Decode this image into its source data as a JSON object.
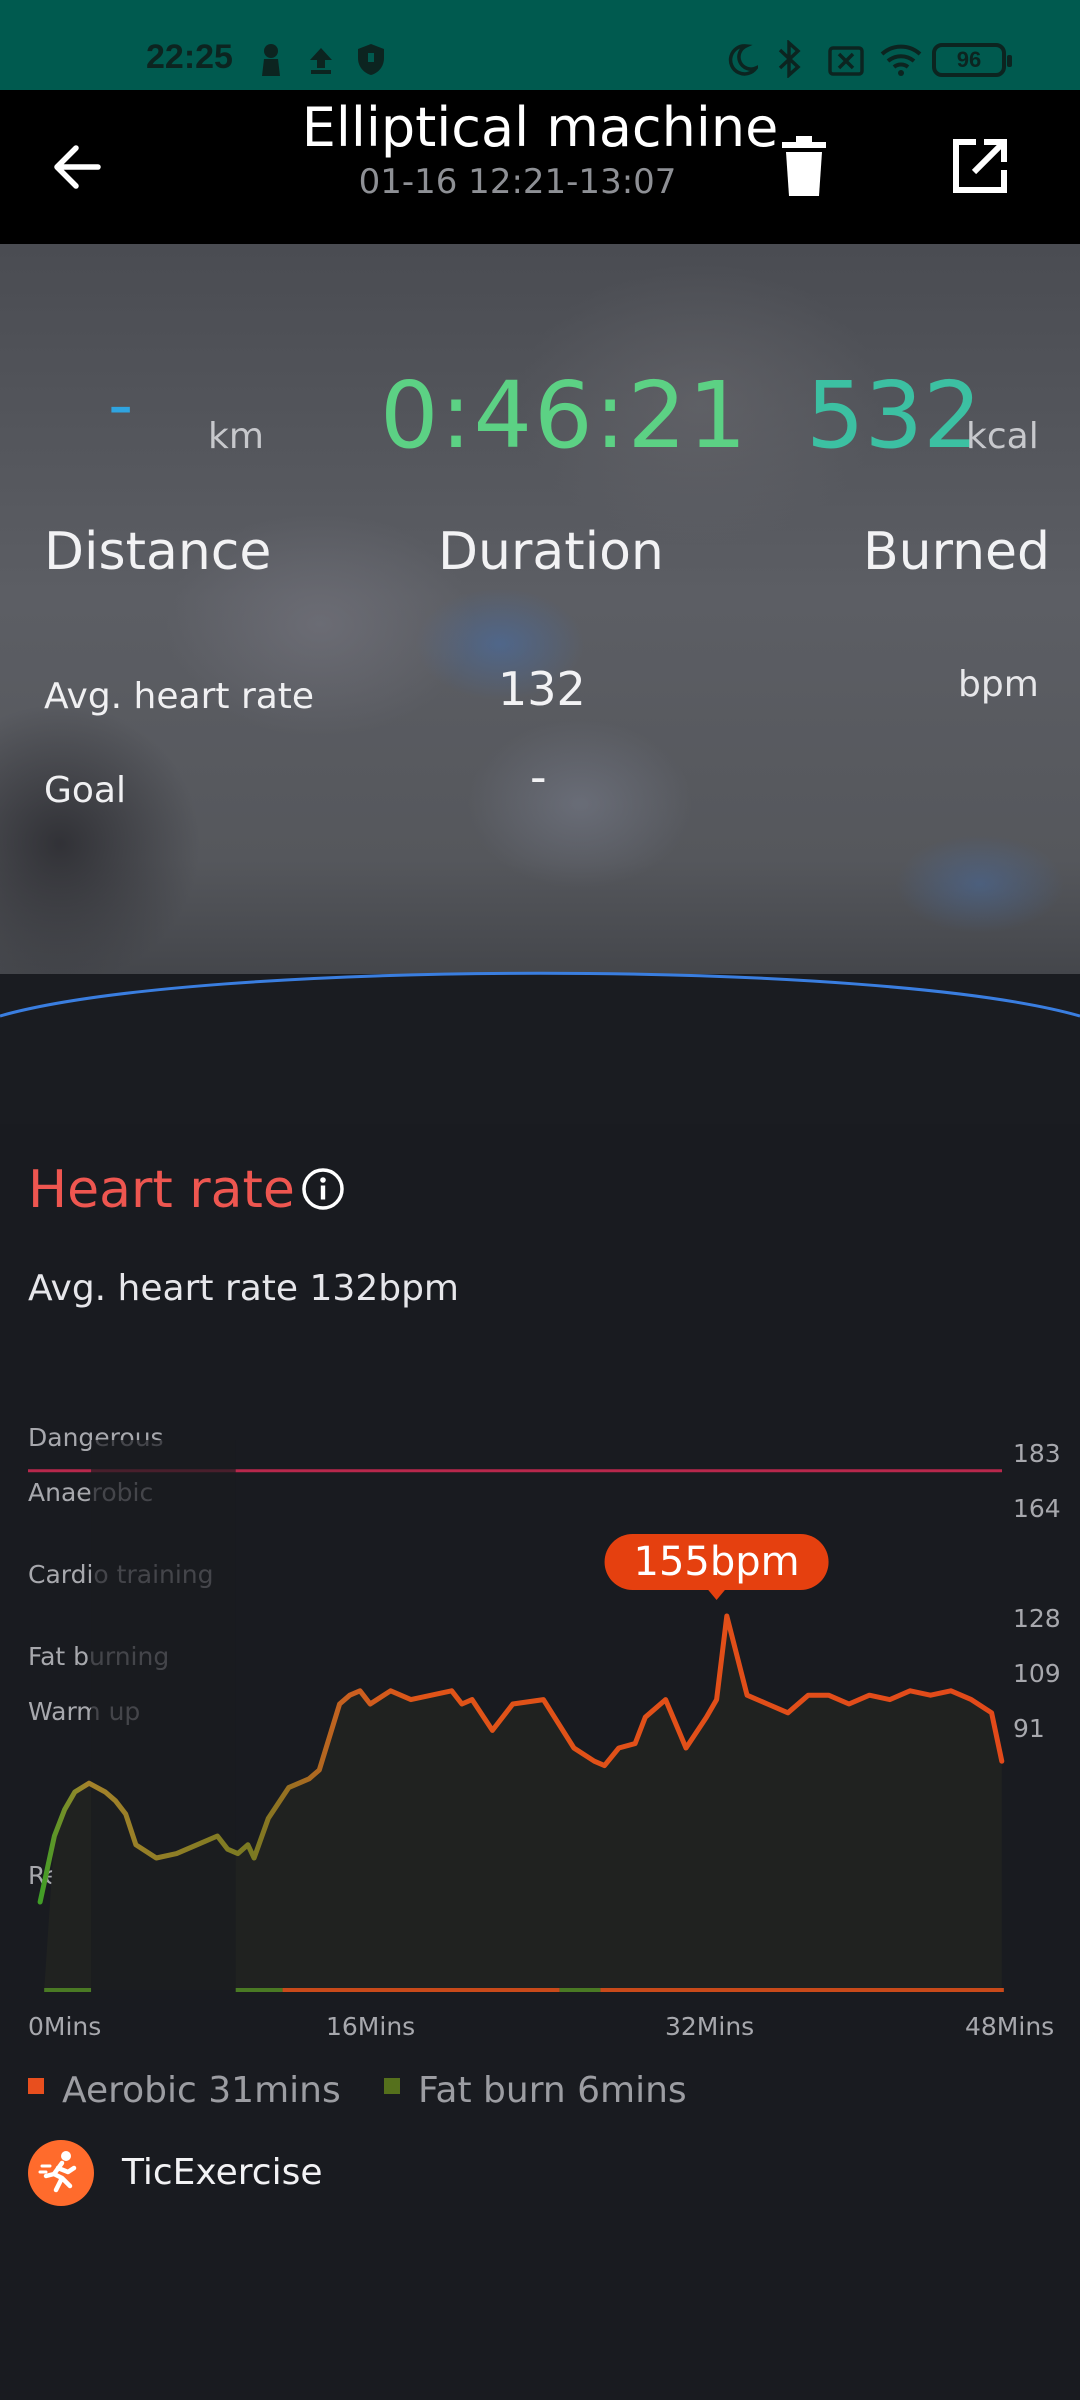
{
  "status_bar": {
    "time": "22:25",
    "battery": "96"
  },
  "header": {
    "title": "Elliptical machine",
    "subtitle": "01-16 12:21-13:07"
  },
  "stats": {
    "distance_value": "-",
    "distance_unit": "km",
    "duration_value": "0:46:21",
    "calories_value": "532",
    "calories_unit": "kcal",
    "distance_label": "Distance",
    "duration_label": "Duration",
    "burned_label": "Burned",
    "avg_hr_label": "Avg. heart rate",
    "avg_hr_value": "132",
    "avg_hr_unit": "bpm",
    "goal_label": "Goal",
    "goal_value": "-"
  },
  "heart_rate": {
    "title": "Heart rate",
    "avg_text": "Avg. heart rate 132bpm",
    "peak_badge": "155bpm"
  },
  "chart_data": {
    "type": "line",
    "x_unit": "Mins",
    "xlim": [
      0,
      48
    ],
    "ylim": [
      65,
      190
    ],
    "x_ticks": [
      "0Mins",
      "16Mins",
      "32Mins",
      "48Mins"
    ],
    "y_ticks": [
      183,
      164,
      128,
      109,
      91
    ],
    "zones": [
      {
        "name": "Dangerous",
        "min": 183,
        "color": "#e0455e"
      },
      {
        "name": "Anaerobic",
        "min": 164
      },
      {
        "name": "Cardio training",
        "min": 146
      },
      {
        "name": "Fat burning",
        "min": 128
      },
      {
        "name": "Warm up",
        "min": 109
      },
      {
        "name": "Resting",
        "min": 0
      }
    ],
    "series": [
      {
        "x": [
          0.3,
          1.0,
          1.5,
          2.0,
          2.7,
          3.5,
          4.0,
          4.5,
          5.0,
          6.0,
          7.0,
          8.0,
          9.0,
          9.5,
          10.0,
          10.5,
          10.8,
          11.5,
          12.5,
          13.5,
          14.0,
          15.0,
          15.5,
          16.0,
          16.5,
          17.5,
          18.5,
          19.5,
          20.5,
          21.0,
          21.5,
          22.5,
          23.5,
          25.0,
          26.5,
          27.5,
          28.0,
          28.7,
          29.5,
          30.0,
          31.0,
          32.0,
          33.0,
          33.5,
          34.0,
          35.0,
          36.0,
          37.0,
          38.0,
          39.0,
          40.0,
          41.0,
          42.0,
          43.0,
          44.0,
          45.0,
          46.0,
          47.0,
          47.5
        ],
        "y": [
          85,
          100,
          106,
          110,
          112,
          110,
          108,
          105,
          98,
          95,
          96,
          98,
          100,
          97,
          96,
          98,
          95,
          104,
          111,
          113,
          115,
          130,
          132,
          133,
          130,
          133,
          131,
          132,
          133,
          130,
          131,
          124,
          130,
          131,
          120,
          117,
          116,
          120,
          121,
          127,
          131,
          120,
          127,
          131,
          150,
          132,
          130,
          128,
          132,
          132,
          130,
          132,
          131,
          133,
          132,
          133,
          131,
          128,
          117
        ],
        "peak": {
          "x": 33.5,
          "y": 155
        }
      }
    ]
  },
  "legend": [
    {
      "label": "Aerobic 31mins",
      "color": "#e84f1e"
    },
    {
      "label": "Fat burn 6mins",
      "color": "#55701c"
    }
  ],
  "app": {
    "name": "TicExercise"
  }
}
